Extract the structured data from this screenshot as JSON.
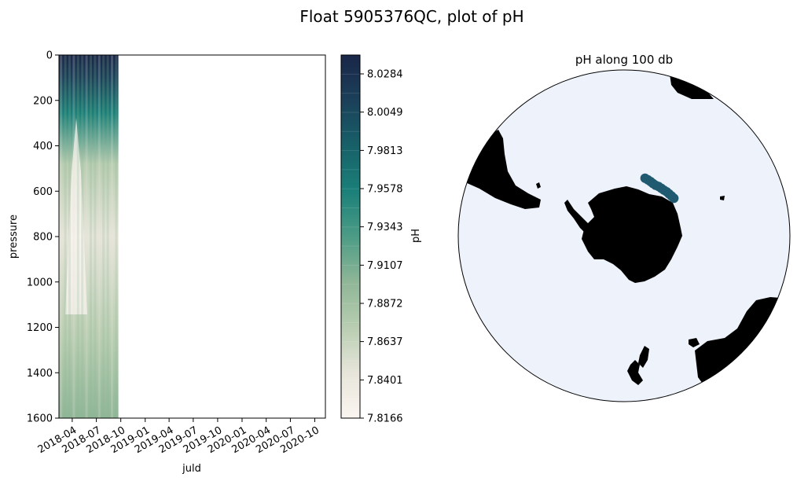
{
  "figure": {
    "suptitle": "Float 5905376QC, plot of pH"
  },
  "colors": {
    "cmap": [
      "#fbf5f1",
      "#e7e5da",
      "#b8cdb1",
      "#8fb697",
      "#4c9c86",
      "#1b8079",
      "#176068",
      "#1b4059",
      "#1a2648"
    ],
    "ocean": "#edf2fb",
    "land": "#000000",
    "track": "#1f5a70"
  },
  "chart_data": [
    {
      "type": "heatmap",
      "name": "section",
      "title": "",
      "xlabel": "juld",
      "ylabel": "pressure",
      "xlim": [
        "2018-02-10",
        "2020-11-10"
      ],
      "ylim": [
        1600,
        0
      ],
      "y_ticks": [
        0,
        200,
        400,
        600,
        800,
        1000,
        1200,
        1400,
        1600
      ],
      "x_ticks": [
        "2018-04",
        "2018-07",
        "2018-10",
        "2019-01",
        "2019-04",
        "2019-07",
        "2019-10",
        "2020-01",
        "2020-04",
        "2020-07",
        "2020-10"
      ],
      "data_extent": {
        "x": [
          "2018-02-10",
          "2018-09-22"
        ],
        "y": [
          0,
          1600
        ]
      },
      "colorbar": {
        "label": "pH",
        "vmin": 7.8166,
        "vmax": 8.04,
        "tick_labels": [
          "8.0284",
          "8.0049",
          "7.9813",
          "7.9578",
          "7.9343",
          "7.9107",
          "7.8872",
          "7.8637",
          "7.8401",
          "7.8166"
        ]
      }
    },
    {
      "type": "scatter",
      "name": "map",
      "title": "pH along 100 db",
      "projection": "south polar stereographic",
      "track_points": [
        {
          "lon": 127,
          "lat": -60.5
        },
        {
          "lon": 130,
          "lat": -60.7
        },
        {
          "lon": 133,
          "lat": -60.9
        },
        {
          "lon": 136,
          "lat": -61.0
        },
        {
          "lon": 139,
          "lat": -61.3
        },
        {
          "lon": 142,
          "lat": -61.4
        },
        {
          "lon": 145,
          "lat": -61.5
        },
        {
          "lon": 148,
          "lat": -61.8
        },
        {
          "lon": 151,
          "lat": -61.7
        },
        {
          "lon": 154,
          "lat": -61.4
        },
        {
          "lon": 157,
          "lat": -61.2
        },
        {
          "lon": 160,
          "lat": -61.0
        }
      ]
    }
  ]
}
